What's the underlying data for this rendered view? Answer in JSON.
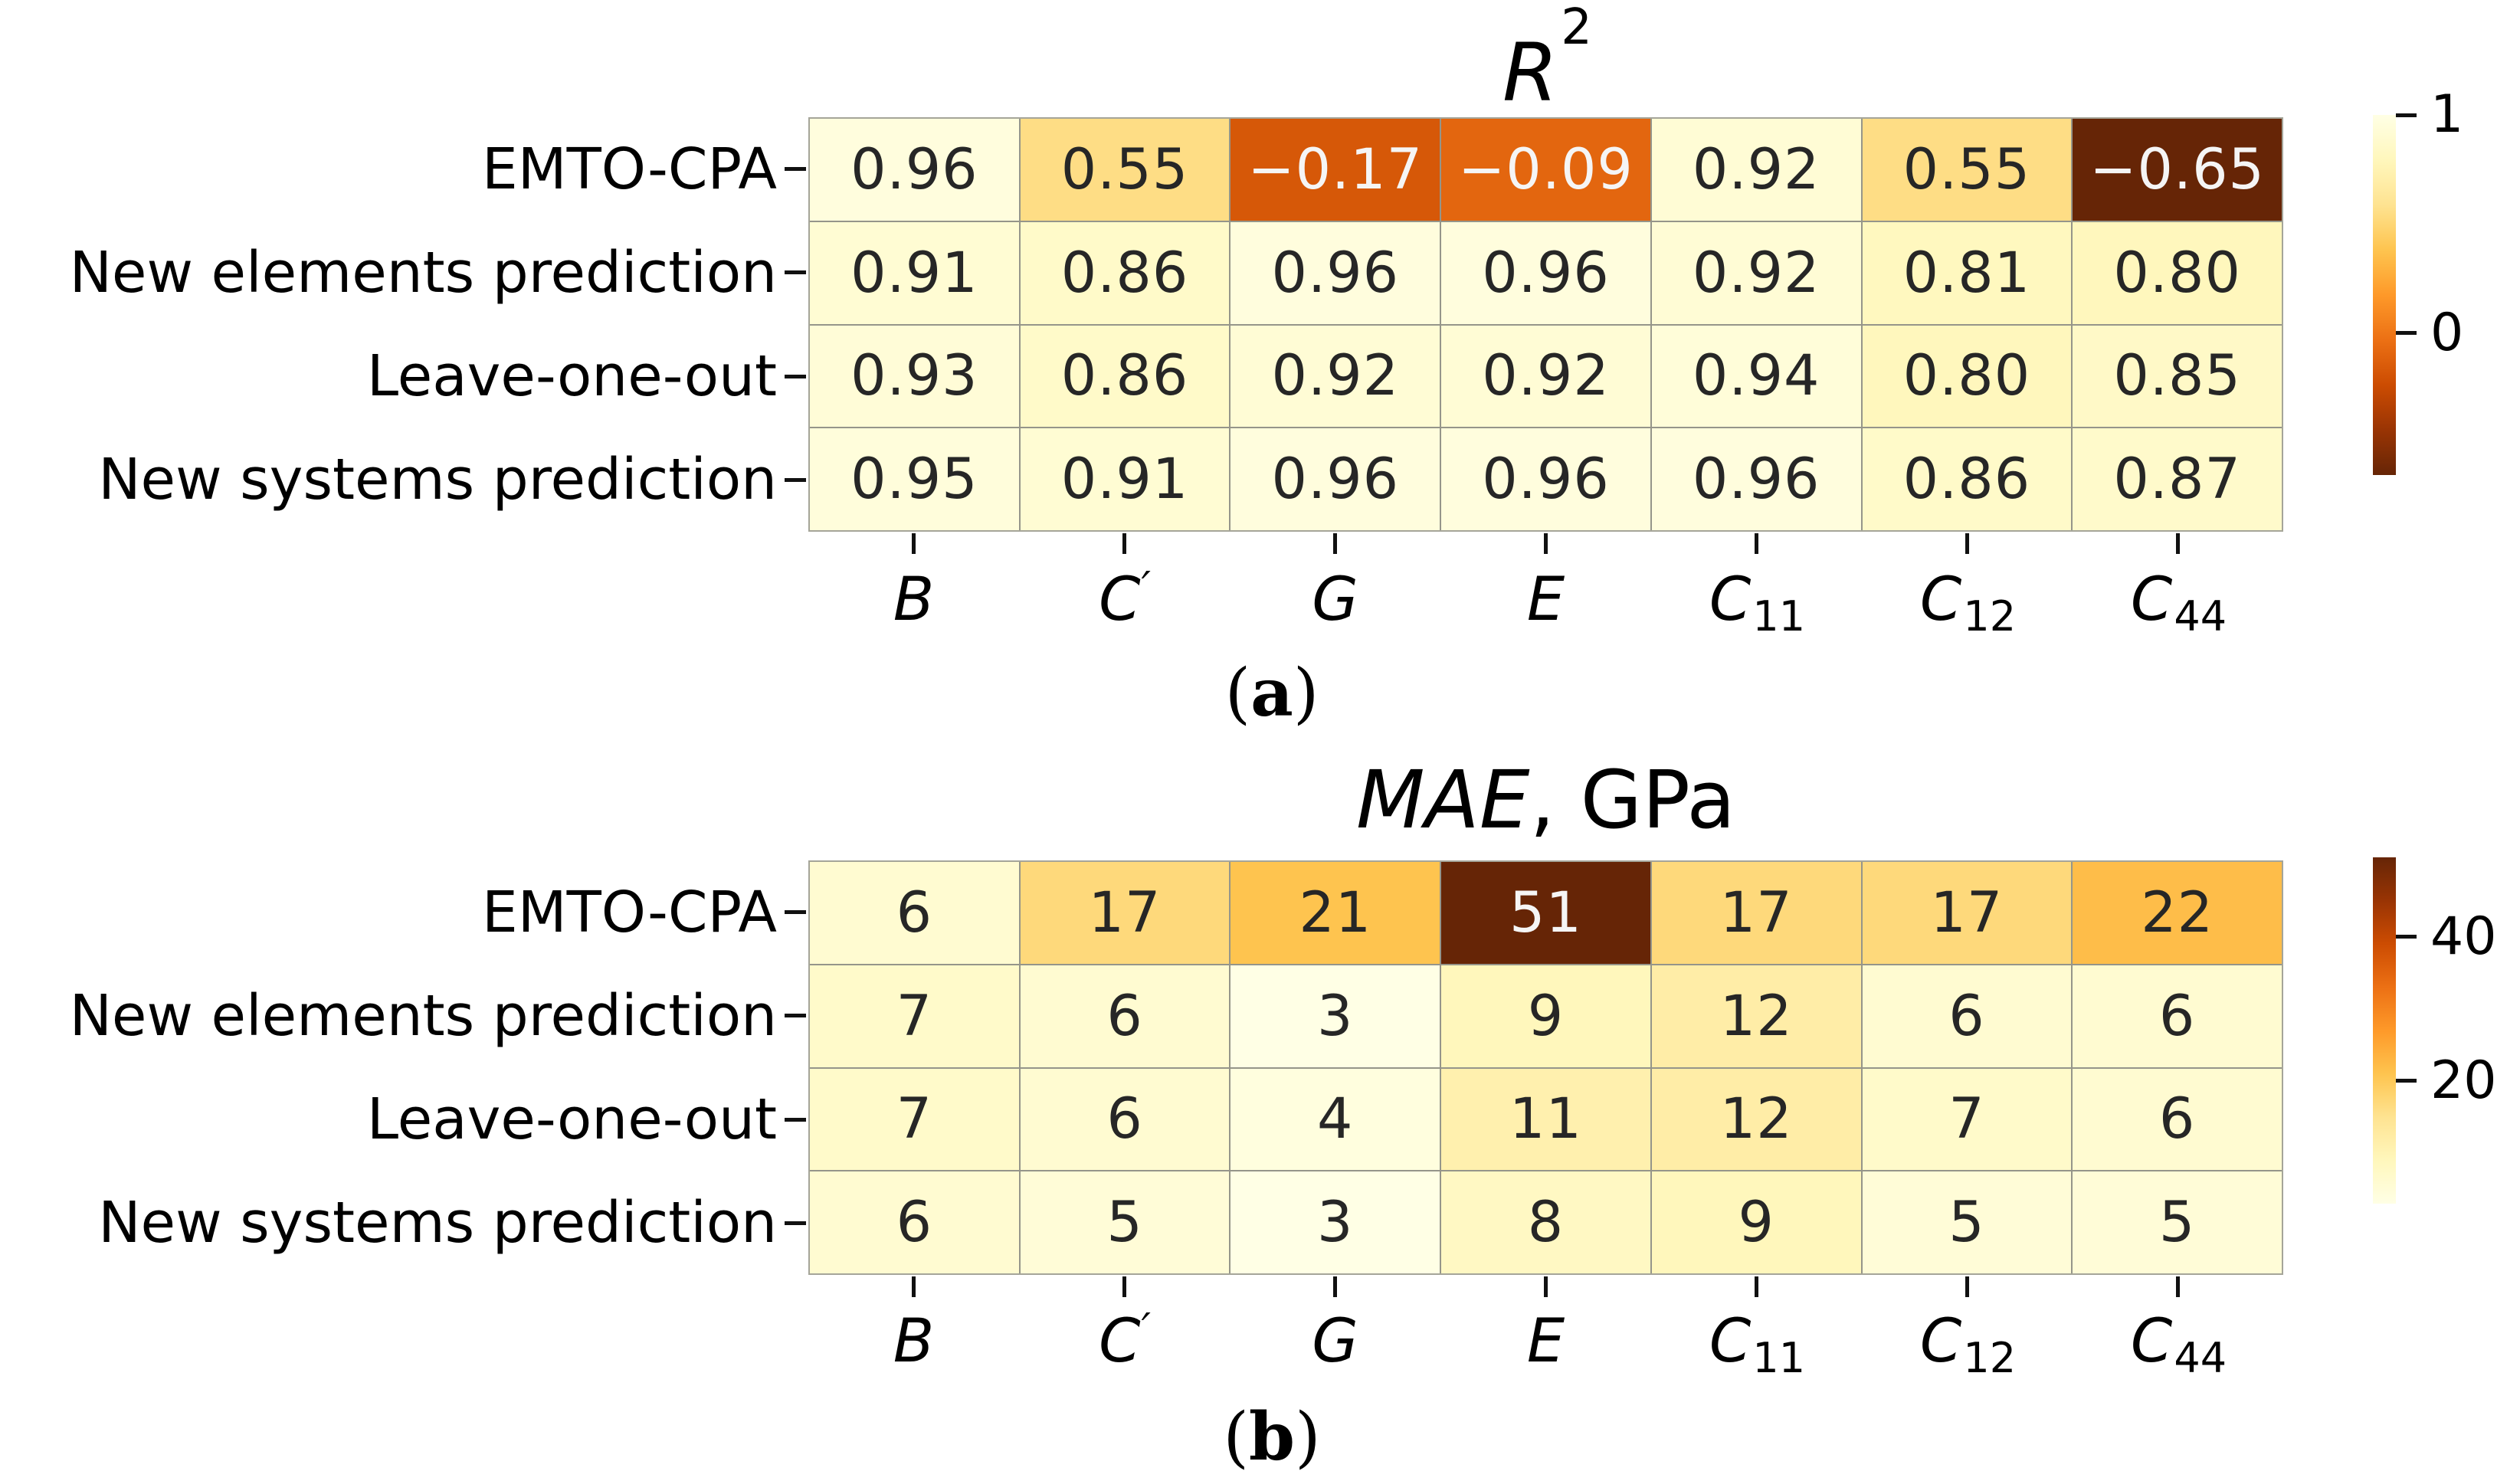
{
  "page": {
    "background": "#ffffff"
  },
  "styles": {
    "grid_line_color": "#95958a",
    "tick_color": "#111111",
    "annotation_dark": "#262626",
    "annotation_light": "#f5f5f5",
    "white_text_threshold": 0.58
  },
  "colormap": {
    "name": "YlOrBr",
    "stops": [
      [
        0.0,
        "#ffffe5"
      ],
      [
        0.125,
        "#fff7bc"
      ],
      [
        0.25,
        "#fee391"
      ],
      [
        0.375,
        "#fec44f"
      ],
      [
        0.5,
        "#fe9929"
      ],
      [
        0.625,
        "#ec7014"
      ],
      [
        0.75,
        "#cc4c02"
      ],
      [
        0.875,
        "#993404"
      ],
      [
        1.0,
        "#662506"
      ]
    ]
  },
  "rows": [
    "EMTO-CPA",
    "New elements prediction",
    "Leave-one-out",
    "New systems prediction"
  ],
  "column_parts": [
    {
      "base": "B",
      "sub": "",
      "prime": ""
    },
    {
      "base": "C",
      "sub": "",
      "prime": "′"
    },
    {
      "base": "G",
      "sub": "",
      "prime": ""
    },
    {
      "base": "E",
      "sub": "",
      "prime": ""
    },
    {
      "base": "C",
      "sub": "11",
      "prime": ""
    },
    {
      "base": "C",
      "sub": "12",
      "prime": ""
    },
    {
      "base": "C",
      "sub": "44",
      "prime": ""
    }
  ],
  "captions": [
    {
      "open": "(",
      "letter": "a",
      "close": ")"
    },
    {
      "open": "(",
      "letter": "b",
      "close": ")"
    }
  ],
  "chart_data": [
    {
      "type": "heatmap",
      "panel": "a",
      "title": "R²",
      "title_parts": {
        "italic": "R",
        "sup": "2",
        "rest": ""
      },
      "rows": [
        "EMTO-CPA",
        "New elements prediction",
        "Leave-one-out",
        "New systems prediction"
      ],
      "columns": [
        "B",
        "C′",
        "G",
        "E",
        "C11",
        "C12",
        "C44"
      ],
      "values": [
        [
          0.96,
          0.55,
          -0.17,
          -0.09,
          0.92,
          0.55,
          -0.65
        ],
        [
          0.91,
          0.86,
          0.96,
          0.96,
          0.92,
          0.81,
          0.8
        ],
        [
          0.93,
          0.86,
          0.92,
          0.92,
          0.94,
          0.8,
          0.85
        ],
        [
          0.95,
          0.91,
          0.96,
          0.96,
          0.96,
          0.86,
          0.87
        ]
      ],
      "cell_labels": [
        [
          "0.96",
          "0.55",
          "−0.17",
          "−0.09",
          "0.92",
          "0.55",
          "−0.65"
        ],
        [
          "0.91",
          "0.86",
          "0.96",
          "0.96",
          "0.92",
          "0.81",
          "0.80"
        ],
        [
          "0.93",
          "0.86",
          "0.92",
          "0.92",
          "0.94",
          "0.80",
          "0.85"
        ],
        [
          "0.95",
          "0.91",
          "0.96",
          "0.96",
          "0.96",
          "0.86",
          "0.87"
        ]
      ],
      "vmin": -0.65,
      "vmax": 1.0,
      "invert_colormap": true,
      "grid": true,
      "legend_position": "right",
      "colorbar": {
        "ticks": [
          {
            "label": "1",
            "value": 1
          },
          {
            "label": "0",
            "value": 0
          }
        ]
      }
    },
    {
      "type": "heatmap",
      "panel": "b",
      "title": "MAE, GPa",
      "title_parts": {
        "italic": "MAE",
        "sup": "",
        "rest": ", GPa"
      },
      "rows": [
        "EMTO-CPA",
        "New elements prediction",
        "Leave-one-out",
        "New systems prediction"
      ],
      "columns": [
        "B",
        "C′",
        "G",
        "E",
        "C11",
        "C12",
        "C44"
      ],
      "values": [
        [
          6,
          17,
          21,
          51,
          17,
          17,
          22
        ],
        [
          7,
          6,
          3,
          9,
          12,
          6,
          6
        ],
        [
          7,
          6,
          4,
          11,
          12,
          7,
          6
        ],
        [
          6,
          5,
          3,
          8,
          9,
          5,
          5
        ]
      ],
      "cell_labels": [
        [
          "6",
          "17",
          "21",
          "51",
          "17",
          "17",
          "22"
        ],
        [
          "7",
          "6",
          "3",
          "9",
          "12",
          "6",
          "6"
        ],
        [
          "7",
          "6",
          "4",
          "11",
          "12",
          "7",
          "6"
        ],
        [
          "6",
          "5",
          "3",
          "8",
          "9",
          "5",
          "5"
        ]
      ],
      "vmin": 3,
      "vmax": 51,
      "invert_colormap": false,
      "grid": true,
      "legend_position": "right",
      "colorbar": {
        "ticks": [
          {
            "label": "40",
            "value": 40
          },
          {
            "label": "20",
            "value": 20
          }
        ]
      }
    }
  ]
}
